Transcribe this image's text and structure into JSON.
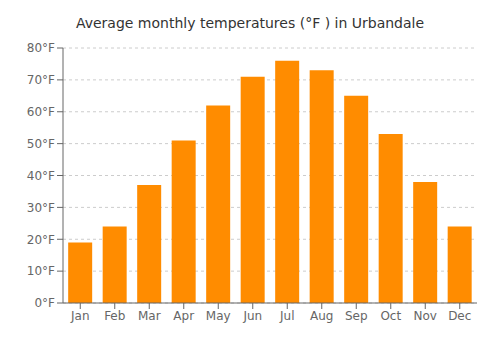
{
  "chart_data": {
    "type": "bar",
    "title": "Average monthly temperatures (°F ) in Urbandale",
    "categories": [
      "Jan",
      "Feb",
      "Mar",
      "Apr",
      "May",
      "Jun",
      "Jul",
      "Aug",
      "Sep",
      "Oct",
      "Nov",
      "Dec"
    ],
    "values": [
      19,
      24,
      37,
      51,
      62,
      71,
      76,
      73,
      65,
      53,
      38,
      24
    ],
    "color": "#FF8C00",
    "ylim": [
      0,
      80
    ],
    "yticks": [
      {
        "value": 0,
        "label": "0°F"
      },
      {
        "value": 10,
        "label": "10°F"
      },
      {
        "value": 20,
        "label": "20°F"
      },
      {
        "value": 30,
        "label": "30°F"
      },
      {
        "value": 40,
        "label": "40°F"
      },
      {
        "value": 50,
        "label": "50°F"
      },
      {
        "value": 60,
        "label": "60°F"
      },
      {
        "value": 70,
        "label": "70°F"
      },
      {
        "value": 80,
        "label": "80°F"
      }
    ],
    "grid": true
  }
}
